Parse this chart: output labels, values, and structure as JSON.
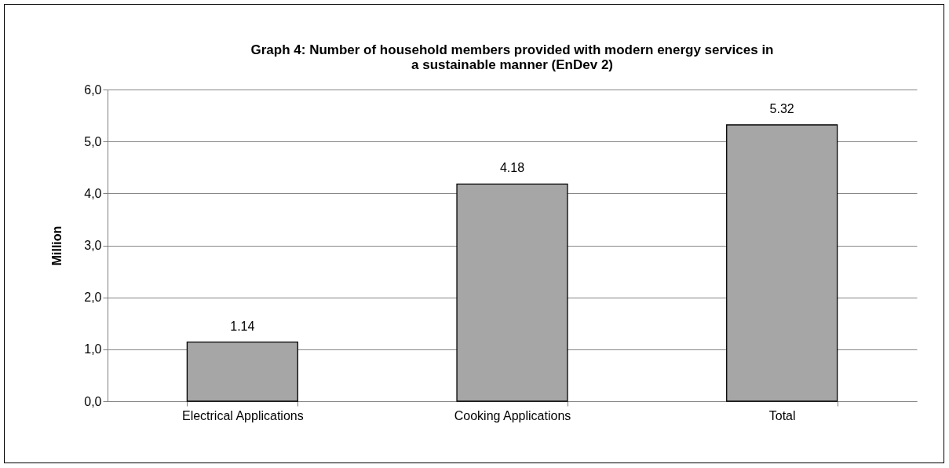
{
  "chart_data": {
    "type": "bar",
    "title": "Graph 4: Number of household members provided with modern energy services in\na sustainable  manner (EnDev 2)",
    "ylabel": "Million",
    "categories": [
      "Electrical Applications",
      "Cooking Applications",
      "Total"
    ],
    "values": [
      1.14,
      4.18,
      5.32
    ],
    "color": "#a6a6a6",
    "ylim": [
      0,
      6
    ],
    "yticks": [
      {
        "value": 0,
        "label": "0,0"
      },
      {
        "value": 1,
        "label": "1,0"
      },
      {
        "value": 2,
        "label": "2,0"
      },
      {
        "value": 3,
        "label": "3,0"
      },
      {
        "value": 4,
        "label": "4,0"
      },
      {
        "value": 5,
        "label": "5,0"
      },
      {
        "value": 6,
        "label": "6,0"
      }
    ],
    "grid": "y",
    "data_labels": true
  }
}
